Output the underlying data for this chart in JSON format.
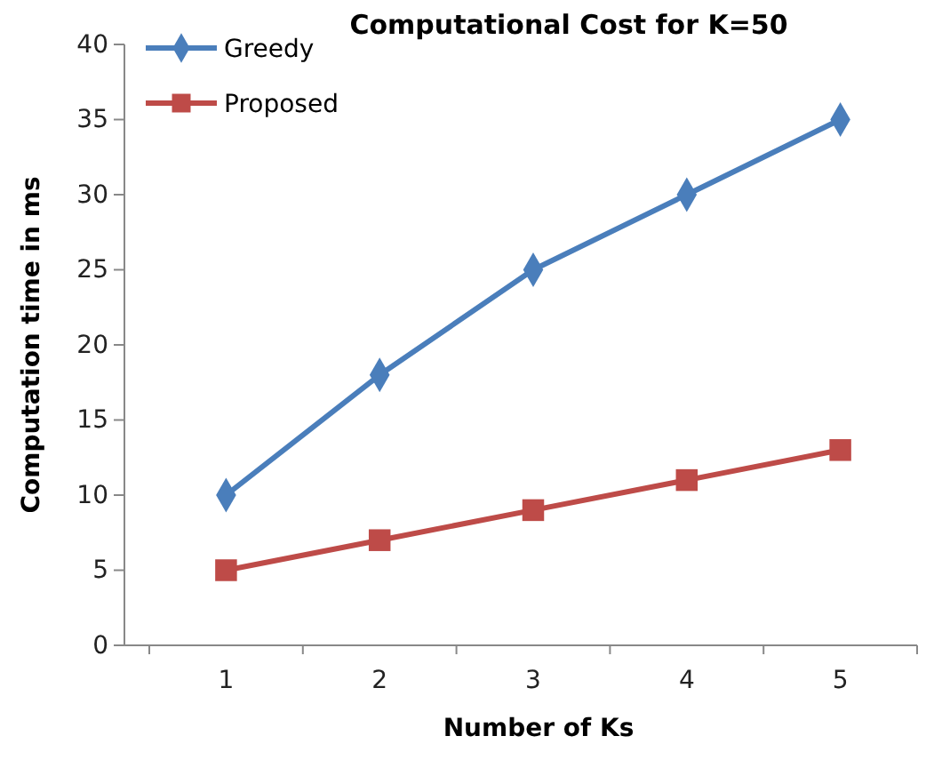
{
  "chart_data": {
    "type": "line",
    "title": "Computational Cost for K=50",
    "xlabel": "Number of Ks",
    "ylabel": "Computation time in ms",
    "categories": [
      "1",
      "2",
      "3",
      "4",
      "5"
    ],
    "series": [
      {
        "name": "Greedy",
        "color": "#4a7ebb",
        "values": [
          10,
          18,
          25,
          30,
          35
        ],
        "marker": "diamond"
      },
      {
        "name": "Proposed",
        "color": "#be4b48",
        "values": [
          5,
          7,
          9,
          11,
          13
        ],
        "marker": "square"
      }
    ],
    "ylim": [
      0,
      40
    ],
    "yticks": [
      0,
      5,
      10,
      15,
      20,
      25,
      30,
      35,
      40
    ],
    "grid": false,
    "legend": "top left",
    "line_style": "solid"
  }
}
